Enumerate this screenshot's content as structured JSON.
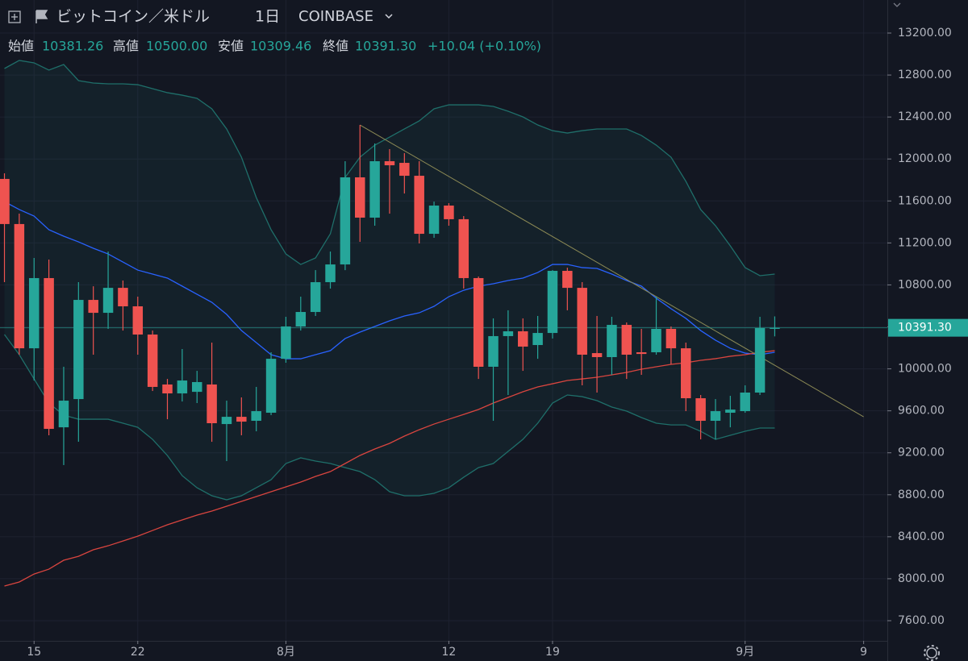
{
  "chart_data": {
    "type": "candlestick",
    "title": "ビットコイン／米ドル",
    "interval": "1日",
    "exchange": "COINBASE",
    "ohlc_header": [
      {
        "name": "始値",
        "label": "10381.26"
      },
      {
        "name": "高値",
        "label": "10500.00"
      },
      {
        "name": "安値",
        "label": "10309.46"
      },
      {
        "name": "終値",
        "label": "10391.30"
      }
    ],
    "change": "+10.04 (+0.10%)",
    "up_color": "#26a69a",
    "down_color": "#ef5350",
    "open": [
      11810,
      11380,
      10196,
      10865,
      9443,
      9712,
      10657,
      10534,
      10772,
      10596,
      10327,
      9851,
      9766,
      9781,
      9851,
      9474,
      9543,
      9505,
      9582,
      10096,
      10404,
      10542,
      10826,
      10995,
      11825,
      11441,
      11979,
      11963,
      11840,
      11287,
      11556,
      11426,
      10865,
      10020,
      10312,
      10358,
      10227,
      10342,
      10934,
      10772,
      10150,
      10112,
      10419,
      10158,
      10158,
      10381,
      10196,
      9720,
      9505,
      9582,
      9597,
      9774,
      10381.26
    ],
    "high": [
      11863,
      11479,
      11057,
      11041,
      10020,
      10826,
      10787,
      11118,
      10842,
      10688,
      10365,
      9904,
      10189,
      9981,
      10250,
      9697,
      9728,
      9828,
      10158,
      10496,
      10688,
      10941,
      11118,
      11979,
      12324,
      12148,
      12094,
      12056,
      11979,
      11594,
      11579,
      11456,
      10880,
      10481,
      10558,
      10481,
      10504,
      10941,
      10964,
      10826,
      10504,
      10496,
      10442,
      10381,
      10688,
      10404,
      10250,
      9751,
      9712,
      9743,
      9843,
      10496,
      10500
    ],
    "low": [
      10826,
      10135,
      9889,
      9367,
      9083,
      9305,
      10135,
      10381,
      10365,
      10135,
      9789,
      9520,
      9689,
      9674,
      9305,
      9121,
      9367,
      9405,
      9559,
      10058,
      10365,
      10504,
      10765,
      10941,
      11210,
      11364,
      11479,
      11671,
      11195,
      11249,
      11364,
      10765,
      9904,
      9505,
      9751,
      9981,
      10096,
      10289,
      10558,
      9843,
      9774,
      9943,
      9904,
      9943,
      10135,
      10043,
      9597,
      9328,
      9328,
      9443,
      9582,
      9751,
      10309.46
    ],
    "close": [
      11380,
      10196,
      10865,
      9428,
      9697,
      10657,
      10534,
      10772,
      10596,
      10327,
      9828,
      9766,
      9889,
      9874,
      9482,
      9543,
      9497,
      9597,
      10096,
      10404,
      10542,
      10826,
      10995,
      11825,
      11441,
      11979,
      11940,
      11840,
      11287,
      11556,
      11426,
      10865,
      10020,
      10312,
      10358,
      10212,
      10342,
      10934,
      10772,
      10135,
      10112,
      10419,
      10135,
      10142,
      10381,
      10196,
      9720,
      9505,
      9597,
      9612,
      9774,
      10389,
      10391.3
    ],
    "overlays": [
      {
        "color": "#1f6f6a",
        "values": [
          12862,
          12939,
          12916,
          12847,
          12900,
          12747,
          12724,
          12716,
          12716,
          12708,
          12670,
          12632,
          12608,
          12578,
          12478,
          12286,
          12017,
          11633,
          11326,
          11095,
          10995,
          11057,
          11287,
          11825,
          12017,
          12132,
          12209,
          12286,
          12363,
          12478,
          12516,
          12516,
          12516,
          12501,
          12455,
          12401,
          12324,
          12270,
          12247,
          12270,
          12286,
          12286,
          12286,
          12224,
          12132,
          12017,
          11787,
          11518,
          11364,
          11172,
          10965,
          10888,
          10903
        ]
      },
      {
        "color": "#2962ff",
        "values": [
          11594,
          11518,
          11456,
          11326,
          11264,
          11210,
          11149,
          11095,
          11018,
          10941,
          10903,
          10865,
          10788,
          10711,
          10634,
          10519,
          10365,
          10250,
          10135,
          10096,
          10096,
          10135,
          10173,
          10289,
          10350,
          10404,
          10458,
          10504,
          10534,
          10596,
          10688,
          10749,
          10788,
          10811,
          10842,
          10865,
          10918,
          10995,
          10995,
          10965,
          10957,
          10903,
          10842,
          10788,
          10673,
          10573,
          10481,
          10365,
          10273,
          10196,
          10150,
          10135,
          10158
        ]
      },
      {
        "color": "#1f6f6a",
        "values": [
          10327,
          10135,
          9904,
          9674,
          9559,
          9520,
          9520,
          9520,
          9482,
          9443,
          9328,
          9174,
          8982,
          8867,
          8791,
          8752,
          8791,
          8867,
          8944,
          9098,
          9152,
          9121,
          9098,
          9059,
          9021,
          8944,
          8829,
          8791,
          8791,
          8814,
          8867,
          8967,
          9059,
          9098,
          9213,
          9328,
          9482,
          9674,
          9751,
          9735,
          9697,
          9636,
          9597,
          9536,
          9482,
          9466,
          9466,
          9405,
          9328,
          9367,
          9405,
          9436,
          9436
        ]
      },
      {
        "color": "#d9453f",
        "values": [
          7930,
          7969,
          8045,
          8091,
          8176,
          8214,
          8276,
          8314,
          8360,
          8406,
          8460,
          8514,
          8560,
          8606,
          8645,
          8691,
          8737,
          8783,
          8829,
          8875,
          8921,
          8975,
          9021,
          9098,
          9175,
          9236,
          9290,
          9359,
          9420,
          9474,
          9520,
          9566,
          9613,
          9674,
          9728,
          9782,
          9828,
          9858,
          9889,
          9904,
          9920,
          9943,
          9966,
          9997,
          10020,
          10043,
          10058,
          10081,
          10097,
          10120,
          10135,
          10158,
          10173
        ]
      }
    ],
    "trendline": {
      "color": "#8c8a55",
      "x": [
        24,
        58
      ],
      "values": [
        12324,
        9543
      ]
    },
    "last_price": {
      "value": 10391.3,
      "label": "10391.30",
      "color": "#26a69a"
    },
    "xlim": [
      -0.3,
      59.6
    ],
    "ylim": [
      7408,
      13515
    ],
    "xticks": [
      {
        "value": 2,
        "label": "15"
      },
      {
        "value": 9,
        "label": "22"
      },
      {
        "value": 19,
        "label": "8月"
      },
      {
        "value": 30,
        "label": "12"
      },
      {
        "value": 37,
        "label": "19"
      },
      {
        "value": 50,
        "label": "9月"
      },
      {
        "value": 58,
        "label": "9"
      }
    ],
    "yticks": [
      {
        "value": 7600,
        "label": "7600.00"
      },
      {
        "value": 8000,
        "label": "8000.00"
      },
      {
        "value": 8400,
        "label": "8400.00"
      },
      {
        "value": 8800,
        "label": "8800.00"
      },
      {
        "value": 9200,
        "label": "9200.00"
      },
      {
        "value": 9600,
        "label": "9600.00"
      },
      {
        "value": 10000,
        "label": "10000.00"
      },
      {
        "value": 10400,
        "label": "10400.00"
      },
      {
        "value": 10800,
        "label": "10800.00"
      },
      {
        "value": 11200,
        "label": "11200.00"
      },
      {
        "value": 11600,
        "label": "11600.00"
      },
      {
        "value": 12000,
        "label": "12000.00"
      },
      {
        "value": 12400,
        "label": "12400.00"
      },
      {
        "value": 12800,
        "label": "12800.00"
      },
      {
        "value": 13200,
        "label": "13200.00"
      }
    ],
    "grid": true
  }
}
